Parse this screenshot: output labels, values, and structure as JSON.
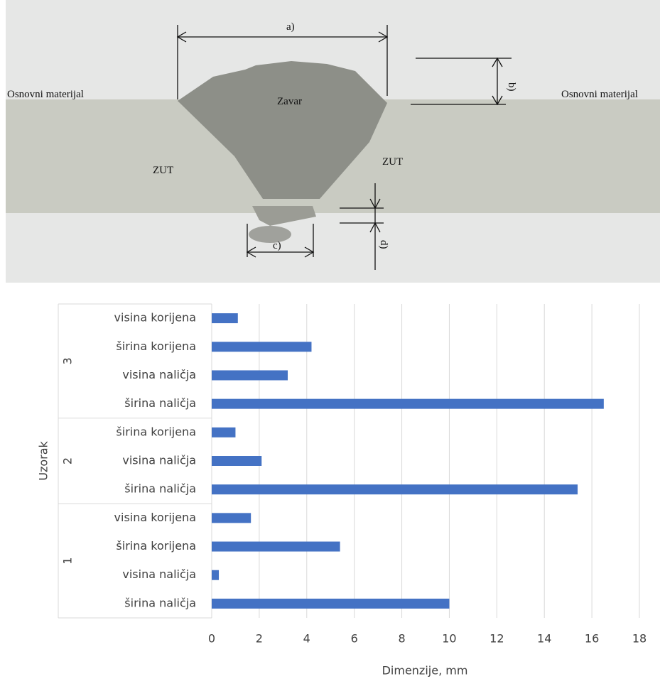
{
  "photo": {
    "dimensions": [
      "a)",
      "b)",
      "c)",
      "d)"
    ],
    "regions": [
      "Osnovni materijal",
      "Zavar",
      "ZUT",
      "ZUT",
      "Osnovni materijal"
    ]
  },
  "chart_data": {
    "type": "bar",
    "orientation": "horizontal",
    "xlabel": "Dimenzije, mm",
    "ylabel": "Uzorak",
    "color": "#4472c4",
    "xlim": [
      0,
      18
    ],
    "xticks": [
      0,
      2,
      4,
      6,
      8,
      10,
      12,
      14,
      16,
      18
    ],
    "grid": true,
    "groups": [
      {
        "name": "1",
        "categories": [
          "širina naličja",
          "visina naličja",
          "širina korijena",
          "visina korijena"
        ],
        "values": [
          10,
          0.3,
          5.4,
          1.65
        ]
      },
      {
        "name": "2",
        "categories": [
          "širina naličja",
          "visina naličja",
          "širina korijena"
        ],
        "values": [
          15.4,
          2.1,
          1.0
        ]
      },
      {
        "name": "3",
        "categories": [
          "širina naličja",
          "visina naličja",
          "širina korijena",
          "visina korijena"
        ],
        "values": [
          16.5,
          3.2,
          4.2,
          1.1
        ]
      }
    ]
  }
}
